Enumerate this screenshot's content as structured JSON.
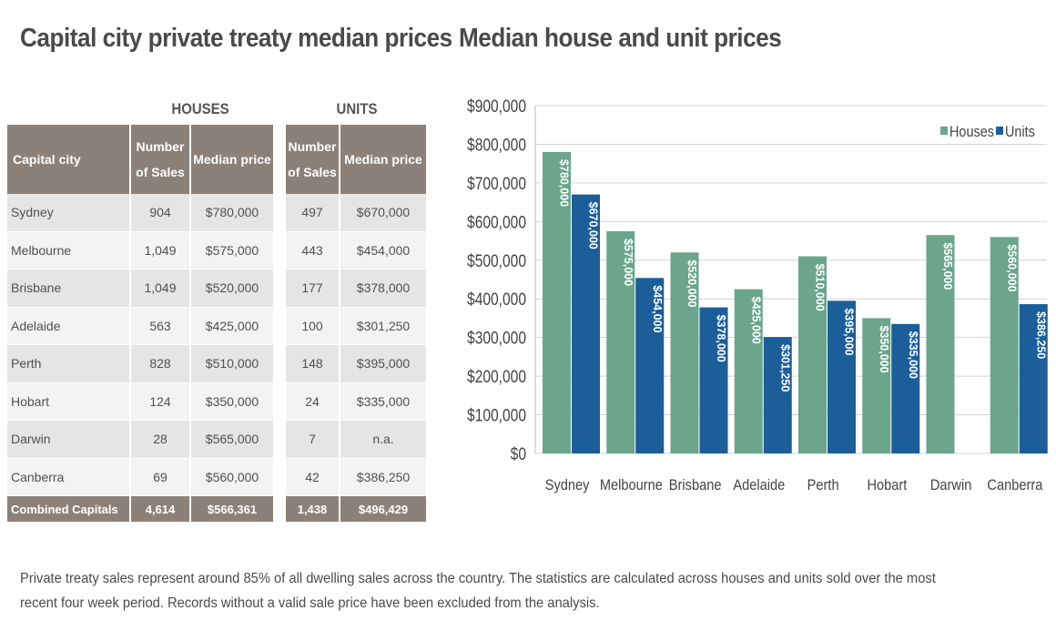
{
  "left_title": "Capital city private treaty median prices",
  "right_title": "Median house and unit prices",
  "table": {
    "group_houses": "HOUSES",
    "group_units": "UNITS",
    "headers": {
      "city": "Capital city",
      "houses_sales": "Number of Sales",
      "houses_price": "Median price",
      "units_sales": "Number of Sales",
      "units_price": "Median price"
    },
    "rows": [
      {
        "city": "Sydney",
        "houses_sales": "904",
        "houses_price": "$780,000",
        "units_sales": "497",
        "units_price": "$670,000"
      },
      {
        "city": "Melbourne",
        "houses_sales": "1,049",
        "houses_price": "$575,000",
        "units_sales": "443",
        "units_price": "$454,000"
      },
      {
        "city": "Brisbane",
        "houses_sales": "1,049",
        "houses_price": "$520,000",
        "units_sales": "177",
        "units_price": "$378,000"
      },
      {
        "city": "Adelaide",
        "houses_sales": "563",
        "houses_price": "$425,000",
        "units_sales": "100",
        "units_price": "$301,250"
      },
      {
        "city": "Perth",
        "houses_sales": "828",
        "houses_price": "$510,000",
        "units_sales": "148",
        "units_price": "$395,000"
      },
      {
        "city": "Hobart",
        "houses_sales": "124",
        "houses_price": "$350,000",
        "units_sales": "24",
        "units_price": "$335,000"
      },
      {
        "city": "Darwin",
        "houses_sales": "28",
        "houses_price": "$565,000",
        "units_sales": "7",
        "units_price": "n.a."
      },
      {
        "city": "Canberra",
        "houses_sales": "69",
        "houses_price": "$560,000",
        "units_sales": "42",
        "units_price": "$386,250"
      }
    ],
    "total": {
      "city": "Combined Capitals",
      "houses_sales": "4,614",
      "houses_price": "$566,361",
      "units_sales": "1,438",
      "units_price": "$496,429"
    }
  },
  "chart_data": {
    "type": "bar",
    "title": "Median house and unit prices",
    "categories": [
      "Sydney",
      "Melbourne",
      "Brisbane",
      "Adelaide",
      "Perth",
      "Hobart",
      "Darwin",
      "Canberra"
    ],
    "series": [
      {
        "name": "Houses",
        "values": [
          780000,
          575000,
          520000,
          425000,
          510000,
          350000,
          565000,
          560000
        ],
        "labels": [
          "$780,000",
          "$575,000",
          "$520,000",
          "$425,000",
          "$510,000",
          "$350,000",
          "$565,000",
          "$560,000"
        ]
      },
      {
        "name": "Units",
        "values": [
          670000,
          454000,
          378000,
          301250,
          395000,
          335000,
          null,
          386250
        ],
        "labels": [
          "$670,000",
          "$454,000",
          "$378,000",
          "$301,250",
          "$395,000",
          "$335,000",
          "",
          "$386,250"
        ]
      }
    ],
    "ylim": [
      0,
      900000
    ],
    "yticks": [
      "$0",
      "$100,000",
      "$200,000",
      "$300,000",
      "$400,000",
      "$500,000",
      "$600,000",
      "$700,000",
      "$800,000",
      "$900,000"
    ],
    "legend": "top-right",
    "grid": true,
    "colors": {
      "Houses": "#6aa58c",
      "Units": "#1b5e9a"
    }
  },
  "footnote": "Private treaty sales represent around 85% of all dwelling sales across the country. The statistics are calculated across houses and units sold over the most recent four week period. Records without a valid sale price have been excluded from the analysis."
}
